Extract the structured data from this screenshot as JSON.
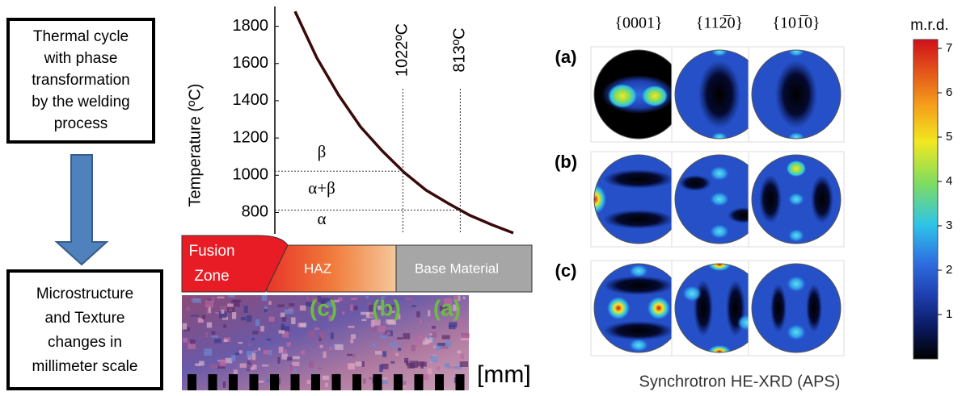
{
  "flow": {
    "top_box": [
      "Thermal cycle",
      "with phase",
      "transformation",
      "by the welding",
      "process"
    ],
    "bottom_box": [
      "Microstructure",
      "and Texture",
      "changes in",
      "millimeter scale"
    ]
  },
  "chart_data": {
    "type": "line",
    "y_label": "Temperature (ºC)",
    "categories": [
      null,
      null,
      null,
      null,
      null,
      null,
      null,
      null,
      null,
      null,
      null
    ],
    "values": [
      1880,
      1630,
      1430,
      1260,
      1130,
      1015,
      920,
      850,
      785,
      735,
      690
    ],
    "color": "#3a0a0a",
    "ylim": [
      685,
      1885
    ],
    "yticks": [
      800,
      1000,
      1200,
      1400,
      1600,
      1800
    ],
    "markers": [
      {
        "value": 1022,
        "label": "1022ºC"
      },
      {
        "value": 813,
        "label": "813ºC"
      }
    ],
    "phase_labels": [
      "β",
      "α+β",
      "α"
    ]
  },
  "zones": {
    "fusion": [
      "Fusion",
      "Zone"
    ],
    "haz": "HAZ",
    "base": "Base Material"
  },
  "micrograph": {
    "labels": [
      "(c)",
      "(b)",
      "(a)"
    ],
    "unit": "[mm]"
  },
  "pole_figures": {
    "columns": [
      "{0001}",
      "{112̅0}",
      "{101̅0}"
    ],
    "rows": [
      "(a)",
      "(b)",
      "(c)"
    ],
    "colorbar": {
      "label": "m.r.d.",
      "lim": [
        0,
        7.2
      ],
      "ticks": [
        1,
        2,
        3,
        4,
        5,
        6,
        7
      ]
    },
    "caption": "Synchrotron HE-XRD (APS)"
  }
}
